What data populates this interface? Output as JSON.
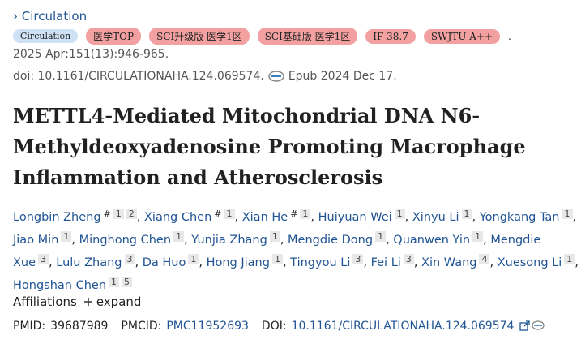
{
  "journal": {
    "name": "Circulation"
  },
  "badges": [
    "Circulation",
    "医学TOP",
    "SCI升级版 医学1区",
    "SCI基础版 医学1区",
    "IF 38.7",
    "SWJTU A++"
  ],
  "badges_end": ".",
  "citation": "2025 Apr;151(13):946-965.",
  "doi_line": {
    "doi": "doi: 10.1161/CIRCULATIONAHA.124.069574.",
    "epub": "Epub 2024 Dec 17."
  },
  "title": "METTL4-Mediated Mitochondrial DNA N6-Methyldeoxyadenosine Promoting Macrophage Inflammation and Atherosclerosis",
  "authors": [
    {
      "name": "Longbin Zheng",
      "marks": [
        "#",
        "1",
        "2"
      ]
    },
    {
      "name": "Xiang Chen",
      "marks": [
        "#",
        "1"
      ]
    },
    {
      "name": "Xian He",
      "marks": [
        "#",
        "1"
      ]
    },
    {
      "name": "Huiyuan Wei",
      "marks": [
        "1"
      ]
    },
    {
      "name": "Xinyu Li",
      "marks": [
        "1"
      ]
    },
    {
      "name": "Yongkang Tan",
      "marks": [
        "1"
      ]
    },
    {
      "name": "Jiao Min",
      "marks": [
        "1"
      ]
    },
    {
      "name": "Minghong Chen",
      "marks": [
        "1"
      ]
    },
    {
      "name": "Yunjia Zhang",
      "marks": [
        "1"
      ]
    },
    {
      "name": "Mengdie Dong",
      "marks": [
        "1"
      ]
    },
    {
      "name": "Quanwen Yin",
      "marks": [
        "1"
      ]
    },
    {
      "name": "Mengdie Xue",
      "marks": [
        "3"
      ]
    },
    {
      "name": "Lulu Zhang",
      "marks": [
        "3"
      ]
    },
    {
      "name": "Da Huo",
      "marks": [
        "1"
      ]
    },
    {
      "name": "Hong Jiang",
      "marks": [
        "1"
      ]
    },
    {
      "name": "Tingyou Li",
      "marks": [
        "3"
      ]
    },
    {
      "name": "Fei Li",
      "marks": [
        "3"
      ]
    },
    {
      "name": "Xin Wang",
      "marks": [
        "4"
      ]
    },
    {
      "name": "Xuesong Li",
      "marks": [
        "1"
      ]
    },
    {
      "name": "Hongshan Chen",
      "marks": [
        "1",
        "5"
      ]
    }
  ],
  "author_separator": ",",
  "affiliations": {
    "label": "Affiliations",
    "toggle": "expand"
  },
  "ids": {
    "pmid_label": "PMID:",
    "pmid": "39687989",
    "pmcid_label": "PMCID:",
    "pmcid": "PMC11952693",
    "doi_label": "DOI:",
    "doi": "10.1161/CIRCULATIONAHA.124.069574"
  }
}
